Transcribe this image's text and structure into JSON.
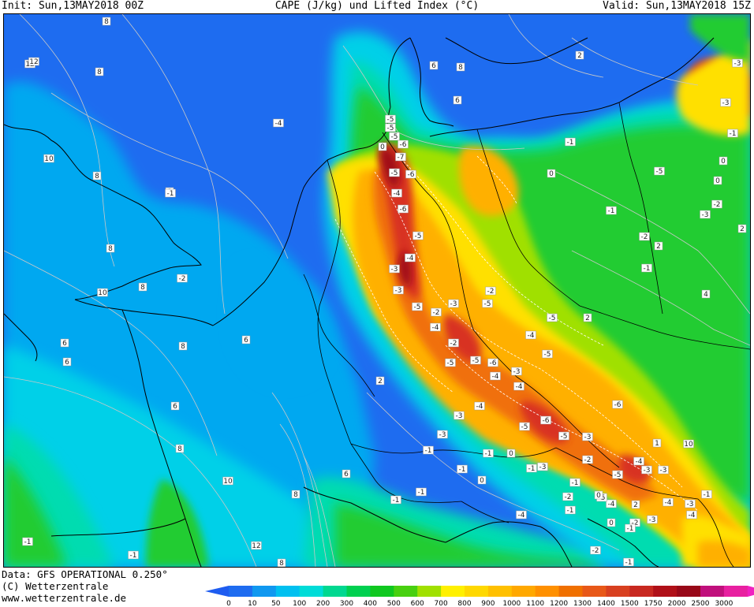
{
  "header": {
    "init": "Init: Sun,13MAY2018 00Z",
    "title": "CAPE (J/kg) und Lifted Index (°C)",
    "valid": "Valid: Sun,13MAY2018 15Z"
  },
  "footer": {
    "data": "Data: GFS OPERATIONAL 0.250°",
    "copyright": "(C) Wetterzentrale",
    "url": "www.wetterzentrale.de"
  },
  "colorbar": {
    "ticks": [
      "0",
      "10",
      "50",
      "100",
      "200",
      "300",
      "400",
      "500",
      "600",
      "700",
      "800",
      "900",
      "1000",
      "1100",
      "1200",
      "1300",
      "1400",
      "1500",
      "1750",
      "2000",
      "2500",
      "3000"
    ],
    "colors": [
      "#1e6cf0",
      "#1098f0",
      "#00c0f0",
      "#00dcd8",
      "#00d890",
      "#00d050",
      "#10c820",
      "#48d010",
      "#a0e000",
      "#fff000",
      "#ffd800",
      "#ffc000",
      "#ffa800",
      "#ff9000",
      "#f07000",
      "#e85818",
      "#d84020",
      "#c82820",
      "#b01018",
      "#980818",
      "#c0107c",
      "#e820a0"
    ],
    "low_color": "#1e5cf0",
    "high_color": "#f020c0"
  },
  "map": {
    "colors": {
      "ocean": "#1e6cf0",
      "light_blue": "#00a8f0",
      "cyan": "#00d0e8",
      "teal": "#00dcb0",
      "green": "#20cc30",
      "yellow_green": "#a0e000",
      "yellow": "#ffe000",
      "orange": "#ffb000",
      "deep_orange": "#f07010",
      "red": "#d83020",
      "dark_red": "#a00818",
      "coast": "#000000",
      "isoline": "#c8c8c8"
    },
    "li_labels": [
      "12",
      "10",
      "8",
      "8",
      "8",
      "10",
      "8",
      "8",
      "6",
      "8",
      "6",
      "6",
      "6",
      "8",
      "6",
      "2",
      "8",
      "8",
      "10",
      "8",
      "12",
      "12",
      "-1",
      "-1",
      "4",
      "0",
      "-5",
      "-5",
      "-5",
      "-7",
      "-6",
      "-5",
      "-6",
      "-4",
      "-6",
      "-3",
      "-4",
      "-5",
      "-3",
      "-5",
      "-2",
      "-3",
      "-4",
      "-5",
      "-2",
      "-5",
      "-6",
      "-4",
      "-3",
      "-4",
      "-5",
      "-4",
      "-5",
      "-6",
      "-5",
      "-3",
      "-6",
      "-4",
      "-5",
      "-4",
      "-3",
      "-2",
      "-1",
      "-1",
      "0",
      "-1",
      "0",
      "-1",
      "-2",
      "-1",
      "0",
      "-1",
      "-3",
      "-3",
      "-2",
      "-1",
      "-3",
      "-4",
      "-5",
      "-4",
      "-3",
      "-2",
      "-5",
      "-5",
      "-4",
      "-3",
      "-1",
      "-1",
      "-1",
      "-3",
      "-2",
      "0",
      "2",
      "1",
      "10",
      "4",
      "2",
      "2",
      "8",
      "6",
      "6",
      "-5",
      "-4",
      "-1",
      "-2",
      "-3",
      "-3",
      "-1",
      "0",
      "0",
      "-2",
      "-3",
      "2",
      "-1",
      "0",
      "-1",
      "-2",
      "2",
      "-1",
      "-1",
      "-3",
      "-4"
    ]
  }
}
